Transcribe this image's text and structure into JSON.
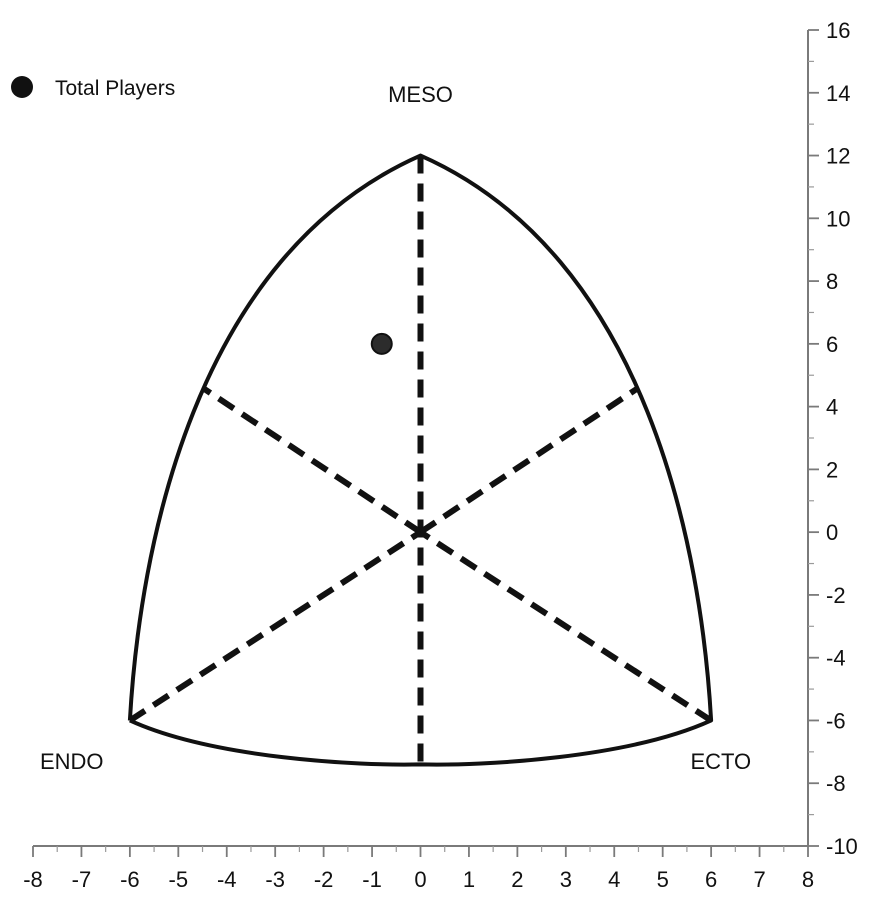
{
  "chart_data": {
    "type": "scatter",
    "legend": {
      "placement": "top-left",
      "label": "Total Players",
      "marker": "circle",
      "color": "#111111"
    },
    "series": [
      {
        "name": "Total Players",
        "points": [
          {
            "x": -0.8,
            "y": 6.0
          }
        ]
      }
    ],
    "xlim": [
      -8,
      8
    ],
    "ylim": [
      -10,
      16
    ],
    "x_ticks": [
      -8,
      -7,
      -6,
      -5,
      -4,
      -3,
      -2,
      -1,
      0,
      1,
      2,
      3,
      4,
      5,
      6,
      7,
      8
    ],
    "y_ticks": [
      -10,
      -8,
      -6,
      -4,
      -2,
      0,
      2,
      4,
      6,
      8,
      10,
      12,
      14,
      16
    ],
    "x_tick_labels": [
      "-8",
      "-7",
      "-6",
      "-5",
      "-4",
      "-3",
      "-2",
      "-1",
      "0",
      "1",
      "2",
      "3",
      "4",
      "5",
      "6",
      "7",
      "8"
    ],
    "y_tick_labels": [
      "-10",
      "-8",
      "-6",
      "-4",
      "-2",
      "0",
      "2",
      "4",
      "6",
      "8",
      "10",
      "12",
      "14",
      "16"
    ],
    "grid": false,
    "somatochart": {
      "poles": [
        {
          "label": "MESO",
          "x": 0,
          "y": 12
        },
        {
          "label": "ENDO",
          "x": -6,
          "y": -6
        },
        {
          "label": "ECTO",
          "x": 6,
          "y": -6
        }
      ],
      "outline_color": "#111111",
      "dashed_axes_color": "#111111"
    }
  }
}
